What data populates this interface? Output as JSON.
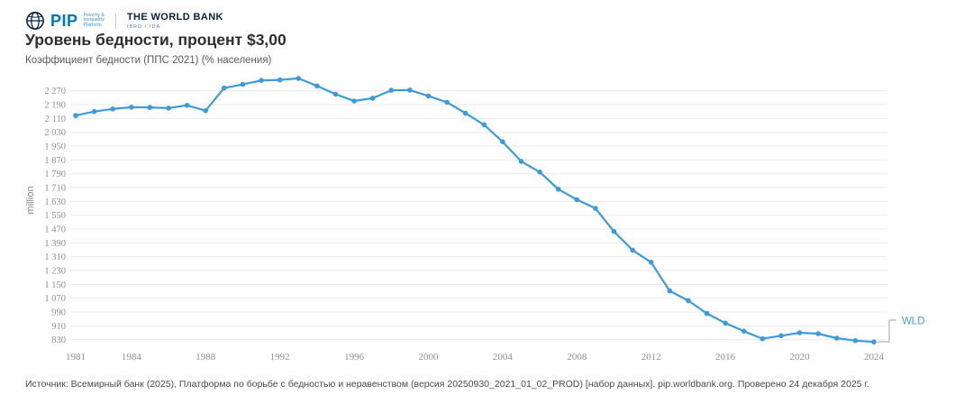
{
  "header": {
    "logo": {
      "pip": "PIP",
      "pip_tagline_lines": [
        "Poverty &",
        "Inequality",
        "Platform"
      ],
      "world_bank": "THE WORLD BANK",
      "world_bank_sub": "IBRD • IDA"
    },
    "title": "Уровень бедности, процент $3,00",
    "subtitle": "Коэффициент бедности (ППС 2021) (% населения)"
  },
  "chart_data": {
    "type": "line",
    "title": "Уровень бедности, процент $3,00",
    "subtitle": "Коэффициент бедности (ППС 2021) (% населения)",
    "xlabel": "",
    "ylabel": "million",
    "x_ticks": [
      1981,
      1984,
      1988,
      1992,
      1996,
      2000,
      2004,
      2008,
      2012,
      2016,
      2020,
      2024
    ],
    "y_ticks": [
      830,
      910,
      990,
      1070,
      1150,
      1230,
      1310,
      1390,
      1470,
      1550,
      1630,
      1710,
      1790,
      1870,
      1950,
      2030,
      2110,
      2190,
      2270
    ],
    "ylim": [
      790,
      2350
    ],
    "xlim": [
      1980.5,
      2024.7
    ],
    "grid": "horizontal",
    "legend_position": "end-of-line",
    "line_color": "#3d9bd9",
    "grid_color": "#e9e9e9",
    "tick_color": "#8f8f8f",
    "connector_color": "#b3b3b3",
    "end_label": "WLD",
    "series": [
      {
        "name": "WLD",
        "x": [
          1981,
          1982,
          1983,
          1984,
          1985,
          1986,
          1987,
          1988,
          1989,
          1990,
          1991,
          1992,
          1993,
          1994,
          1995,
          1996,
          1997,
          1998,
          1999,
          2000,
          2001,
          2002,
          2003,
          2004,
          2005,
          2006,
          2007,
          2008,
          2009,
          2010,
          2011,
          2012,
          2013,
          2014,
          2015,
          2016,
          2017,
          2018,
          2019,
          2020,
          2021,
          2022,
          2023,
          2024
        ],
        "values": [
          2127,
          2150,
          2165,
          2175,
          2174,
          2170,
          2186,
          2155,
          2286,
          2307,
          2330,
          2333,
          2342,
          2298,
          2250,
          2211,
          2227,
          2273,
          2274,
          2240,
          2204,
          2140,
          2074,
          1975,
          1862,
          1800,
          1701,
          1640,
          1590,
          1456,
          1348,
          1278,
          1112,
          1056,
          982,
          926,
          879,
          836,
          853,
          870,
          865,
          839,
          825,
          817
        ]
      }
    ]
  },
  "footer": {
    "source": "Источник: Всемирный банк (2025), Платформа по борьбе с бедностью и неравенством (версия 20250930_2021_01_02_PROD) [набор данных]. pip.worldbank.org. Проверено 24 декабря 2025 г."
  }
}
